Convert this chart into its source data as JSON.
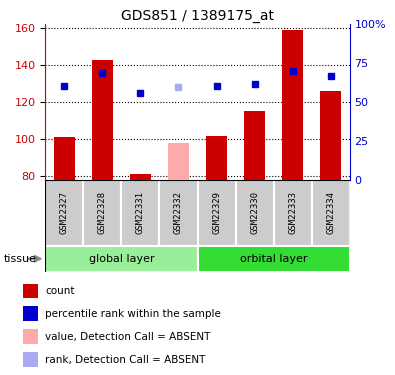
{
  "title": "GDS851 / 1389175_at",
  "samples": [
    "GSM22327",
    "GSM22328",
    "GSM22331",
    "GSM22332",
    "GSM22329",
    "GSM22330",
    "GSM22333",
    "GSM22334"
  ],
  "bar_values": [
    101,
    143,
    81,
    null,
    102,
    115,
    159,
    126
  ],
  "bar_absent_values": [
    null,
    null,
    null,
    98,
    null,
    null,
    null,
    null
  ],
  "rank_values": [
    129,
    136,
    125,
    null,
    129,
    130,
    137,
    134
  ],
  "rank_absent_values": [
    null,
    null,
    null,
    128,
    null,
    null,
    null,
    null
  ],
  "bar_color": "#cc0000",
  "bar_absent_color": "#ffaaaa",
  "rank_color": "#0000cc",
  "rank_absent_color": "#aaaaee",
  "ylim_left": [
    78,
    162
  ],
  "yticks_left": [
    80,
    100,
    120,
    140,
    160
  ],
  "ytick_labels_right": [
    "0",
    "25",
    "50",
    "75",
    "100%"
  ],
  "left_axis_color": "#cc0000",
  "right_axis_color": "#0000cc",
  "bar_width": 0.55,
  "groups": [
    {
      "label": "global layer",
      "indices": [
        0,
        1,
        2,
        3
      ],
      "color": "#99ee99"
    },
    {
      "label": "orbital layer",
      "indices": [
        4,
        5,
        6,
        7
      ],
      "color": "#33dd33"
    }
  ],
  "tissue_label": "tissue",
  "sample_bg_color": "#cccccc",
  "legend_items": [
    {
      "color": "#cc0000",
      "label": "count"
    },
    {
      "color": "#0000cc",
      "label": "percentile rank within the sample"
    },
    {
      "color": "#ffaaaa",
      "label": "value, Detection Call = ABSENT"
    },
    {
      "color": "#aaaaee",
      "label": "rank, Detection Call = ABSENT"
    }
  ]
}
